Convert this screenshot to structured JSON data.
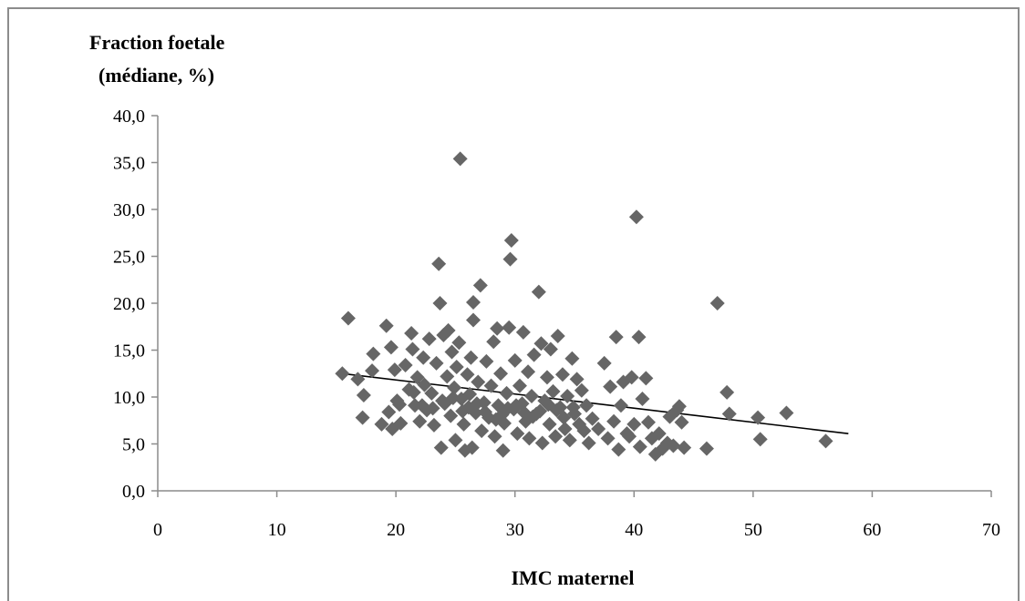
{
  "chart_data": {
    "type": "scatter",
    "ylabel_lines": [
      "Fraction foetale",
      "(médiane, %)"
    ],
    "xlabel": "IMC maternel",
    "xlim": [
      0,
      70
    ],
    "ylim": [
      0,
      40
    ],
    "x_ticks": [
      "0",
      "10",
      "20",
      "30",
      "40",
      "50",
      "60",
      "70"
    ],
    "y_ticks": [
      "0,0",
      "5,0",
      "10,0",
      "15,0",
      "20,0",
      "25,0",
      "30,0",
      "35,0",
      "40,0"
    ],
    "grid": false,
    "legend": "none",
    "colors": {
      "marker": "#666666",
      "trendline": "#000000",
      "axis": "#8c8c8c",
      "frame": "#8c8c8c"
    },
    "marker_shape": "diamond",
    "trendline": {
      "type": "linear",
      "x": [
        15.5,
        58
      ],
      "y": [
        12.5,
        6.1
      ]
    },
    "points": [
      [
        16,
        18.4
      ],
      [
        15.5,
        12.5
      ],
      [
        16.8,
        11.9
      ],
      [
        17.3,
        10.2
      ],
      [
        17.2,
        7.8
      ],
      [
        18,
        12.8
      ],
      [
        18.1,
        14.6
      ],
      [
        18.8,
        7.1
      ],
      [
        19.2,
        17.6
      ],
      [
        19.4,
        8.4
      ],
      [
        19.6,
        15.3
      ],
      [
        19.7,
        6.6
      ],
      [
        19.9,
        12.9
      ],
      [
        20.1,
        9.6
      ],
      [
        20.4,
        7.2
      ],
      [
        20.8,
        13.4
      ],
      [
        21.1,
        10.8
      ],
      [
        21.3,
        16.8
      ],
      [
        21.4,
        15.1
      ],
      [
        21.6,
        9.1
      ],
      [
        21.8,
        12.1
      ],
      [
        22,
        7.4
      ],
      [
        22.3,
        14.2
      ],
      [
        22.4,
        11.3
      ],
      [
        22.6,
        8.6
      ],
      [
        22.8,
        16.2
      ],
      [
        23,
        10.4
      ],
      [
        23.2,
        7
      ],
      [
        23.4,
        13.6
      ],
      [
        23.6,
        24.2
      ],
      [
        23.7,
        20
      ],
      [
        23.8,
        4.6
      ],
      [
        24,
        16.6
      ],
      [
        24.1,
        9.3
      ],
      [
        24.3,
        12.2
      ],
      [
        24.4,
        17.1
      ],
      [
        24.6,
        8
      ],
      [
        24.7,
        14.8
      ],
      [
        24.9,
        11
      ],
      [
        25,
        5.4
      ],
      [
        25.1,
        13.2
      ],
      [
        25.3,
        15.8
      ],
      [
        25.4,
        35.4
      ],
      [
        25.5,
        9.8
      ],
      [
        25.7,
        7.1
      ],
      [
        25.8,
        4.3
      ],
      [
        26,
        12.4
      ],
      [
        26.2,
        10.3
      ],
      [
        26.3,
        14.2
      ],
      [
        26.4,
        4.6
      ],
      [
        26.5,
        20.1
      ],
      [
        26.5,
        18.2
      ],
      [
        26.7,
        8.3
      ],
      [
        26.9,
        11.6
      ],
      [
        27.1,
        21.9
      ],
      [
        27.2,
        6.4
      ],
      [
        27.4,
        9.4
      ],
      [
        27.6,
        13.8
      ],
      [
        27.8,
        7.8
      ],
      [
        28,
        11.2
      ],
      [
        28.2,
        15.9
      ],
      [
        28.3,
        5.8
      ],
      [
        28.5,
        17.3
      ],
      [
        28.6,
        9.1
      ],
      [
        28.8,
        12.5
      ],
      [
        29,
        4.3
      ],
      [
        29.1,
        7.2
      ],
      [
        29.3,
        10.4
      ],
      [
        29.5,
        17.4
      ],
      [
        29.6,
        24.7
      ],
      [
        29.7,
        26.7
      ],
      [
        29.9,
        8.7
      ],
      [
        30,
        13.9
      ],
      [
        30.2,
        6.1
      ],
      [
        30.4,
        11.2
      ],
      [
        30.6,
        9.3
      ],
      [
        30.7,
        16.9
      ],
      [
        30.9,
        7.4
      ],
      [
        31.1,
        12.7
      ],
      [
        31.2,
        5.6
      ],
      [
        31.4,
        10.1
      ],
      [
        31.6,
        14.5
      ],
      [
        31.8,
        8.2
      ],
      [
        32,
        21.2
      ],
      [
        32.2,
        15.7
      ],
      [
        32.3,
        5.1
      ],
      [
        32.5,
        9.6
      ],
      [
        32.7,
        12.1
      ],
      [
        32.9,
        7.1
      ],
      [
        33,
        15.1
      ],
      [
        33.2,
        10.6
      ],
      [
        33.4,
        5.8
      ],
      [
        33.6,
        16.5
      ],
      [
        33.8,
        8.9
      ],
      [
        34,
        12.4
      ],
      [
        34.2,
        6.6
      ],
      [
        34.4,
        10.1
      ],
      [
        34.6,
        5.4
      ],
      [
        34.8,
        14.1
      ],
      [
        35,
        8.2
      ],
      [
        35.2,
        11.9
      ],
      [
        35.4,
        7.1
      ],
      [
        35.6,
        10.7
      ],
      [
        35.8,
        6.4
      ],
      [
        36,
        9.1
      ],
      [
        36.2,
        5.1
      ],
      [
        36.5,
        7.7
      ],
      [
        37,
        6.6
      ],
      [
        37.5,
        13.6
      ],
      [
        37.8,
        5.6
      ],
      [
        38,
        11.1
      ],
      [
        38.3,
        7.4
      ],
      [
        38.5,
        16.4
      ],
      [
        38.7,
        4.4
      ],
      [
        38.9,
        9.1
      ],
      [
        39.1,
        11.6
      ],
      [
        39.4,
        6.1
      ],
      [
        39.6,
        5.8
      ],
      [
        39.8,
        12.1
      ],
      [
        40,
        7.1
      ],
      [
        40.2,
        29.2
      ],
      [
        40.4,
        16.4
      ],
      [
        40.5,
        4.7
      ],
      [
        40.7,
        9.8
      ],
      [
        41,
        12
      ],
      [
        41.2,
        7.3
      ],
      [
        41.5,
        5.6
      ],
      [
        41.8,
        3.9
      ],
      [
        42.1,
        6.1
      ],
      [
        42.4,
        4.5
      ],
      [
        42.8,
        5.1
      ],
      [
        43,
        7.9
      ],
      [
        43.3,
        4.8
      ],
      [
        43.6,
        8.6
      ],
      [
        43.8,
        9
      ],
      [
        44,
        7.3
      ],
      [
        44.2,
        4.6
      ],
      [
        46.1,
        4.5
      ],
      [
        47,
        20
      ],
      [
        47.8,
        10.5
      ],
      [
        48,
        8.2
      ],
      [
        50.4,
        7.8
      ],
      [
        50.6,
        5.5
      ],
      [
        52.8,
        8.3
      ],
      [
        56.1,
        5.3
      ],
      [
        20.3,
        9.2
      ],
      [
        21.5,
        10.5
      ],
      [
        22.2,
        9.1
      ],
      [
        23.1,
        8.8
      ],
      [
        23.9,
        9.6
      ],
      [
        24.8,
        9.9
      ],
      [
        25.6,
        8.5
      ],
      [
        26.1,
        8.9
      ],
      [
        26.8,
        9.3
      ],
      [
        27.5,
        8.4
      ],
      [
        28.4,
        7.6
      ],
      [
        28.9,
        8.1
      ],
      [
        29.4,
        8.8
      ],
      [
        30.1,
        9.1
      ],
      [
        30.8,
        8.3
      ],
      [
        31.5,
        7.9
      ],
      [
        32.1,
        8.5
      ],
      [
        32.8,
        9.2
      ],
      [
        33.5,
        8.6
      ],
      [
        34.1,
        7.8
      ],
      [
        34.9,
        8.9
      ]
    ]
  }
}
